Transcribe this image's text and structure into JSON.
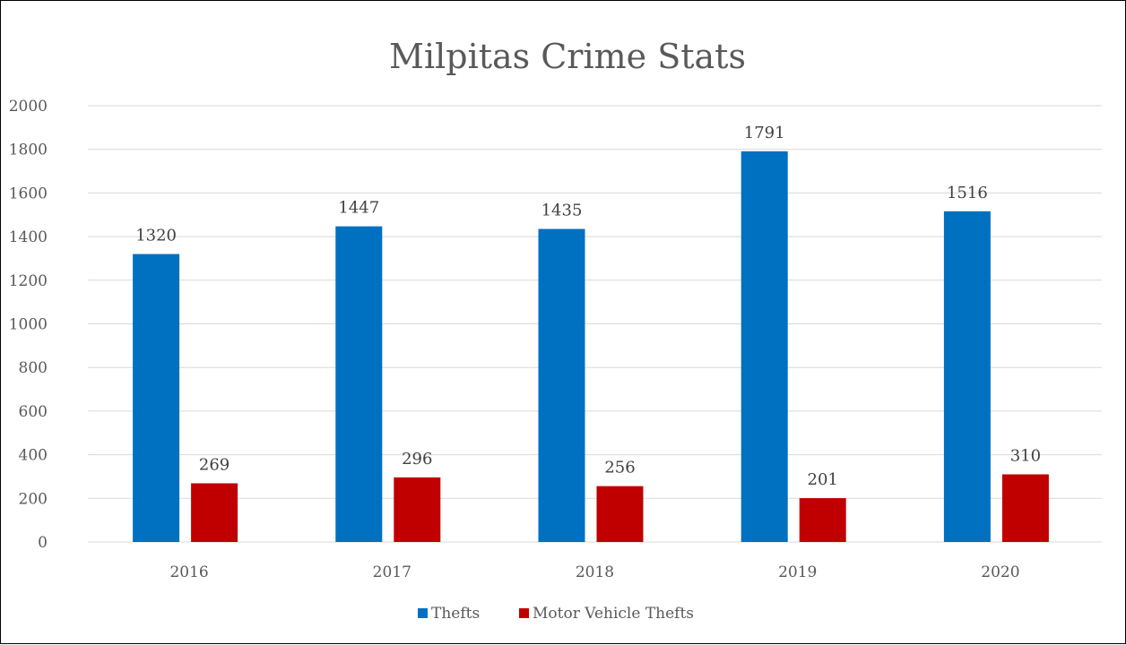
{
  "chart_data": {
    "type": "bar",
    "title": "Milpitas Crime Stats",
    "xlabel": "",
    "ylabel": "",
    "categories": [
      "2016",
      "2017",
      "2018",
      "2019",
      "2020"
    ],
    "series": [
      {
        "name": "Thefts",
        "color": "#0070C0",
        "values": [
          1320,
          1447,
          1435,
          1791,
          1516
        ]
      },
      {
        "name": "Motor Vehicle Thefts",
        "color": "#C00000",
        "values": [
          269,
          296,
          256,
          201,
          310
        ]
      }
    ],
    "ylim": [
      0,
      2000
    ],
    "yticks": [
      "0",
      "200",
      "400",
      "600",
      "800",
      "1000",
      "1200",
      "1400",
      "1600",
      "1800",
      "2000"
    ],
    "grid": true,
    "legend": "bottom",
    "data_labels": true
  }
}
